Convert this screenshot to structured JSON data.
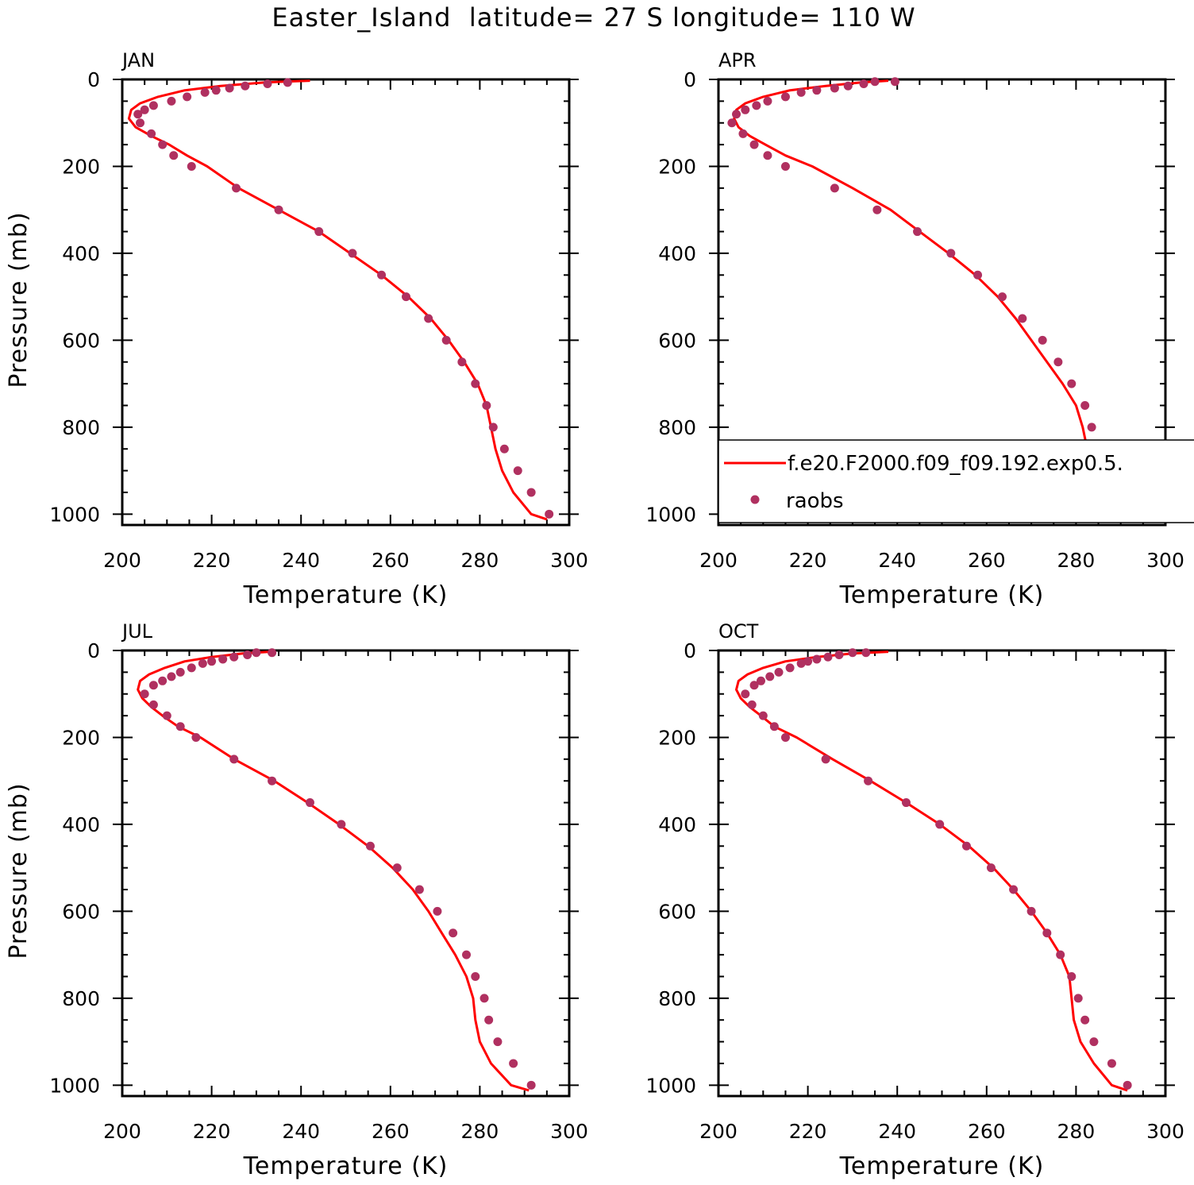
{
  "title": "Easter_Island  latitude= 27 S longitude= 110 W",
  "legend": {
    "model_label": "f.e20.F2000.f09_f09.192.exp0.5.",
    "obs_label": "raobs",
    "model_color": "#ff0000",
    "obs_color": "#b03060"
  },
  "chart_data": [
    {
      "type": "line",
      "panel_label": "JAN",
      "xlabel": "Temperature (K)",
      "ylabel": "Pressure (mb)",
      "xlim": [
        200,
        300
      ],
      "ylim": [
        1025,
        0
      ],
      "y_inverted": true,
      "x_ticks": [
        200,
        220,
        240,
        260,
        280,
        300
      ],
      "y_ticks": [
        0,
        200,
        400,
        600,
        800,
        1000
      ],
      "grid": false,
      "series": [
        {
          "name": "f.e20.F2000.f09_f09.192.exp0.5.",
          "style": "line",
          "x": [
            242.0,
            232.0,
            222.0,
            214.0,
            208.0,
            204.0,
            202.0,
            201.5,
            203.0,
            206.5,
            210.5,
            214.5,
            219.0,
            226.0,
            235.0,
            244.0,
            251.0,
            258.0,
            264.0,
            269.0,
            273.0,
            276.5,
            279.5,
            281.5,
            282.5,
            283.5,
            285.0,
            287.5,
            291.5,
            295.0
          ],
          "y": [
            3,
            7,
            15,
            25,
            40,
            55,
            70,
            90,
            110,
            130,
            150,
            175,
            200,
            250,
            300,
            350,
            400,
            450,
            500,
            550,
            600,
            650,
            700,
            750,
            800,
            850,
            900,
            950,
            1000,
            1012
          ]
        },
        {
          "name": "raobs",
          "style": "points",
          "x": [
            237.0,
            232.5,
            227.5,
            224.0,
            221.0,
            218.5,
            214.5,
            211.0,
            207.0,
            205.0,
            203.5,
            204.0,
            206.5,
            209.0,
            211.5,
            215.5,
            225.5,
            235.0,
            244.0,
            251.5,
            258.0,
            263.5,
            268.5,
            272.5,
            276.0,
            279.0,
            281.5,
            283.0,
            285.5,
            288.5,
            291.5,
            295.5
          ],
          "y": [
            7,
            10,
            15,
            20,
            25,
            30,
            40,
            50,
            60,
            70,
            80,
            100,
            125,
            150,
            175,
            200,
            250,
            300,
            350,
            400,
            450,
            500,
            550,
            600,
            650,
            700,
            750,
            800,
            850,
            900,
            950,
            1000
          ]
        }
      ]
    },
    {
      "type": "line",
      "panel_label": "APR",
      "xlabel": "Temperature (K)",
      "ylabel": "",
      "xlim": [
        200,
        300
      ],
      "ylim": [
        1025,
        0
      ],
      "y_inverted": true,
      "x_ticks": [
        200,
        220,
        240,
        260,
        280,
        300
      ],
      "y_ticks": [
        0,
        200,
        400,
        600,
        800,
        1000
      ],
      "grid": false,
      "series": [
        {
          "name": "f.e20.F2000.f09_f09.192.exp0.5.",
          "style": "line",
          "x": [
            238.0,
            232.0,
            224.0,
            216.0,
            210.0,
            206.0,
            204.0,
            203.5,
            204.5,
            207.0,
            210.5,
            215.0,
            221.0,
            230.0,
            238.5,
            245.0,
            251.5,
            257.5,
            262.5,
            266.5,
            270.0,
            273.5,
            277.0,
            280.0,
            281.5,
            282.5,
            284.5,
            287.5,
            291.5,
            295.5
          ],
          "y": [
            3,
            7,
            15,
            25,
            40,
            55,
            70,
            90,
            110,
            130,
            150,
            175,
            200,
            250,
            300,
            350,
            400,
            450,
            500,
            550,
            600,
            650,
            700,
            750,
            800,
            850,
            900,
            950,
            1000,
            1012
          ]
        },
        {
          "name": "raobs",
          "style": "points",
          "x": [
            239.5,
            235.0,
            232.5,
            229.0,
            226.0,
            222.0,
            218.5,
            215.0,
            211.0,
            208.5,
            206.0,
            204.0,
            203.0,
            205.5,
            208.0,
            211.0,
            215.0,
            226.0,
            235.5,
            244.5,
            252.0,
            258.0,
            263.5,
            268.0,
            272.5,
            276.0,
            279.0,
            282.0,
            283.5,
            285.0,
            287.5,
            291.0,
            295.0
          ],
          "y": [
            5,
            5,
            10,
            15,
            20,
            25,
            30,
            40,
            50,
            60,
            70,
            80,
            100,
            125,
            150,
            175,
            200,
            250,
            300,
            350,
            400,
            450,
            500,
            550,
            600,
            650,
            700,
            750,
            800,
            850,
            900,
            950,
            1000
          ]
        }
      ]
    },
    {
      "type": "line",
      "panel_label": "JUL",
      "xlabel": "Temperature (K)",
      "ylabel": "Pressure (mb)",
      "xlim": [
        200,
        300
      ],
      "ylim": [
        1025,
        0
      ],
      "y_inverted": true,
      "x_ticks": [
        200,
        220,
        240,
        260,
        280,
        300
      ],
      "y_ticks": [
        0,
        200,
        400,
        600,
        800,
        1000
      ],
      "grid": false,
      "series": [
        {
          "name": "f.e20.F2000.f09_f09.192.exp0.5.",
          "style": "line",
          "x": [
            233.0,
            227.0,
            220.0,
            214.0,
            209.5,
            206.0,
            204.0,
            203.5,
            204.5,
            206.5,
            209.0,
            212.5,
            217.5,
            225.0,
            234.0,
            241.5,
            248.5,
            255.0,
            260.5,
            265.0,
            268.5,
            271.5,
            274.5,
            277.0,
            278.5,
            279.0,
            280.0,
            282.5,
            287.0,
            291.0
          ],
          "y": [
            3,
            7,
            15,
            25,
            40,
            55,
            70,
            90,
            110,
            130,
            150,
            175,
            200,
            250,
            300,
            350,
            400,
            450,
            500,
            550,
            600,
            650,
            700,
            750,
            800,
            850,
            900,
            950,
            1000,
            1012
          ]
        },
        {
          "name": "raobs",
          "style": "points",
          "x": [
            233.5,
            230.0,
            228.0,
            225.0,
            222.5,
            220.0,
            218.0,
            215.5,
            213.0,
            211.0,
            209.0,
            207.0,
            205.0,
            207.0,
            210.0,
            213.0,
            216.5,
            225.0,
            233.5,
            242.0,
            249.0,
            255.5,
            261.5,
            266.5,
            270.5,
            274.0,
            277.0,
            279.0,
            281.0,
            282.0,
            284.0,
            287.5,
            291.5
          ],
          "y": [
            5,
            5,
            10,
            15,
            20,
            25,
            30,
            40,
            50,
            60,
            70,
            80,
            100,
            125,
            150,
            175,
            200,
            250,
            300,
            350,
            400,
            450,
            500,
            550,
            600,
            650,
            700,
            750,
            800,
            850,
            900,
            950,
            1000
          ]
        }
      ]
    },
    {
      "type": "line",
      "panel_label": "OCT",
      "xlabel": "Temperature (K)",
      "ylabel": "",
      "xlim": [
        200,
        300
      ],
      "ylim": [
        1025,
        0
      ],
      "y_inverted": true,
      "x_ticks": [
        200,
        220,
        240,
        260,
        280,
        300
      ],
      "y_ticks": [
        0,
        200,
        400,
        600,
        800,
        1000
      ],
      "grid": false,
      "series": [
        {
          "name": "f.e20.F2000.f09_f09.192.exp0.5.",
          "style": "line",
          "x": [
            238.0,
            230.0,
            222.0,
            215.0,
            210.0,
            206.5,
            204.5,
            204.0,
            205.0,
            207.0,
            209.5,
            212.5,
            217.5,
            225.5,
            234.0,
            242.0,
            249.5,
            256.0,
            261.5,
            266.0,
            270.0,
            273.5,
            276.5,
            278.5,
            279.0,
            279.5,
            281.0,
            284.0,
            288.0,
            291.5
          ],
          "y": [
            3,
            7,
            15,
            25,
            40,
            55,
            70,
            90,
            110,
            130,
            150,
            175,
            200,
            250,
            300,
            350,
            400,
            450,
            500,
            550,
            600,
            650,
            700,
            750,
            800,
            850,
            900,
            950,
            1000,
            1012
          ]
        },
        {
          "name": "raobs",
          "style": "points",
          "x": [
            233.0,
            230.0,
            227.0,
            224.5,
            222.0,
            220.0,
            218.5,
            216.0,
            213.5,
            211.5,
            209.5,
            208.0,
            206.0,
            207.5,
            210.0,
            212.5,
            215.0,
            224.0,
            233.5,
            242.0,
            249.5,
            255.5,
            261.0,
            266.0,
            270.0,
            273.5,
            276.5,
            279.0,
            280.5,
            282.0,
            284.0,
            288.0,
            291.5
          ],
          "y": [
            5,
            5,
            10,
            15,
            20,
            25,
            30,
            40,
            50,
            60,
            70,
            80,
            100,
            125,
            150,
            175,
            200,
            250,
            300,
            350,
            400,
            450,
            500,
            550,
            600,
            650,
            700,
            750,
            800,
            850,
            900,
            950,
            1000
          ]
        }
      ]
    }
  ]
}
